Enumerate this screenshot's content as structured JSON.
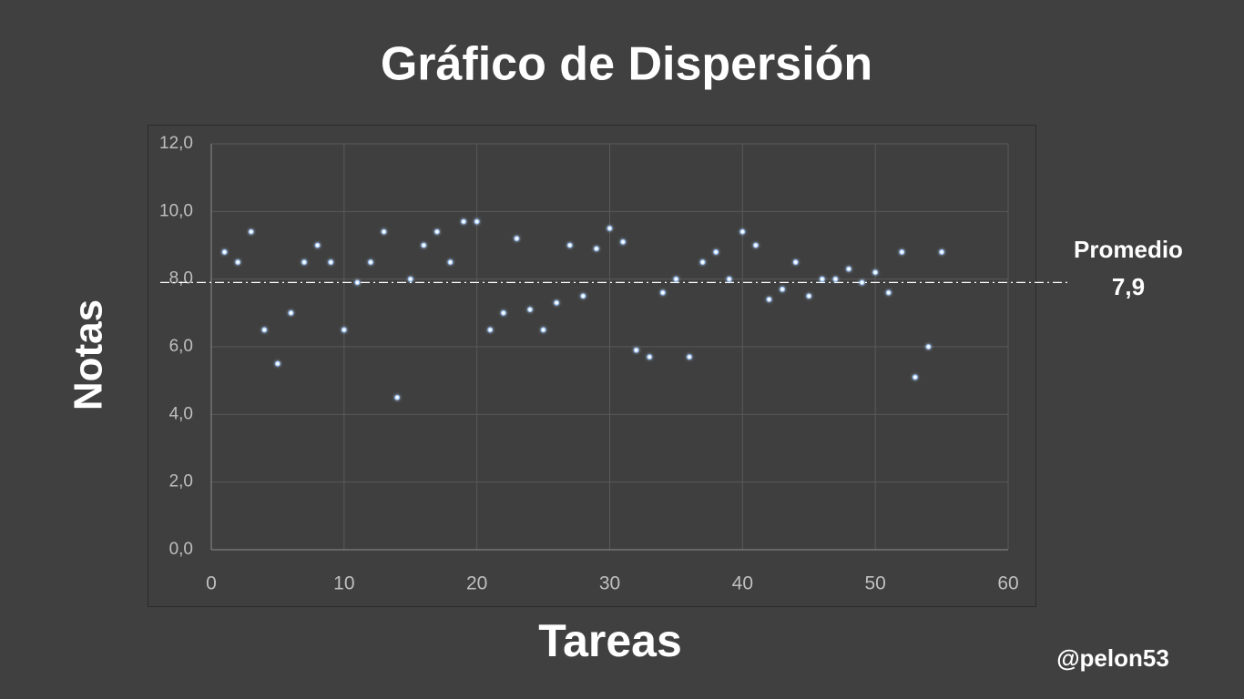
{
  "chart_data": {
    "type": "scatter",
    "title": "Gráfico de Dispersión",
    "x_label": "Tareas",
    "y_label": "Notas",
    "x": [
      1,
      2,
      3,
      4,
      5,
      6,
      7,
      8,
      9,
      10,
      11,
      12,
      13,
      14,
      15,
      16,
      17,
      18,
      19,
      20,
      21,
      22,
      23,
      24,
      25,
      26,
      27,
      28,
      29,
      30,
      31,
      32,
      33,
      34,
      35,
      36,
      37,
      38,
      39,
      40,
      41,
      42,
      43,
      44,
      45,
      46,
      47,
      48,
      49,
      50,
      51,
      52,
      53,
      54,
      55
    ],
    "values": [
      8.8,
      8.5,
      9.4,
      6.5,
      5.5,
      7.0,
      8.5,
      9.0,
      8.5,
      6.5,
      7.9,
      8.5,
      9.4,
      4.5,
      8.0,
      9.0,
      9.4,
      8.5,
      9.7,
      9.7,
      6.5,
      7.0,
      9.2,
      7.1,
      6.5,
      7.3,
      9.0,
      7.5,
      8.9,
      9.5,
      9.1,
      5.9,
      5.7,
      7.6,
      8.0,
      5.7,
      8.5,
      8.8,
      8.0,
      9.4,
      9.0,
      7.4,
      7.7,
      8.5,
      7.5,
      8.0,
      8.0,
      8.3,
      7.9,
      8.2,
      7.6,
      8.8,
      5.1,
      6.0,
      8.8
    ],
    "color": "#ffffff",
    "xlim": [
      0,
      60
    ],
    "xticks": [
      0,
      10,
      20,
      30,
      40,
      50,
      60
    ],
    "ylim": [
      0,
      12
    ],
    "yticks": [
      {
        "value": 0,
        "label": "0,0"
      },
      {
        "value": 2,
        "label": "2,0"
      },
      {
        "value": 4,
        "label": "4,0"
      },
      {
        "value": 6,
        "label": "6,0"
      },
      {
        "value": 8,
        "label": "8,0"
      },
      {
        "value": 10,
        "label": "10,0"
      },
      {
        "value": 12,
        "label": "12,0"
      }
    ],
    "grid": true,
    "mean_label": "Promedio",
    "mean_line": {
      "value": 7.9,
      "label": "7,9"
    },
    "watermark": "@pelon53"
  }
}
